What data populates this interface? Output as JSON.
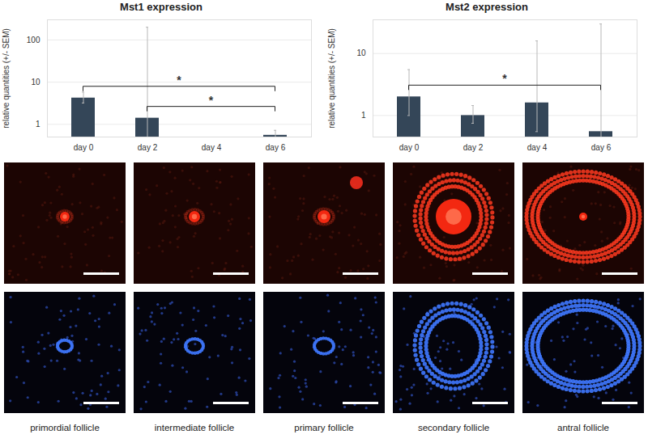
{
  "chart_data": [
    {
      "type": "bar",
      "title": "Mst1 expression",
      "y_label": "relative quantities (+/- SEM)",
      "categories": [
        "day 0",
        "day 2",
        "day 4",
        "day 6"
      ],
      "values": [
        4.2,
        1.4,
        null,
        0.55
      ],
      "error_low": [
        3.2,
        0.5,
        null,
        0.5
      ],
      "error_high": [
        5.8,
        200,
        null,
        0.72
      ],
      "color": "#344658",
      "log": "y",
      "grid": true,
      "ylim": [
        0.5,
        300
      ],
      "yticks": [
        1,
        10,
        100
      ],
      "annotations": [
        {
          "from": "day 0",
          "to": "day 6",
          "label": "*"
        },
        {
          "from": "day 2",
          "to": "day 6",
          "label": "*"
        }
      ]
    },
    {
      "type": "bar",
      "title": "Mst2 expression",
      "y_label": "relative quantities (+/- SEM)",
      "categories": [
        "day 0",
        "day 2",
        "day 4",
        "day 6"
      ],
      "values": [
        2.0,
        1.0,
        1.6,
        0.55
      ],
      "error_low": [
        1.0,
        0.75,
        0.55,
        0.45
      ],
      "error_high": [
        5.5,
        1.45,
        16,
        30
      ],
      "color": "#344658",
      "log": "y",
      "grid": true,
      "ylim": [
        0.45,
        35
      ],
      "yticks": [
        1,
        10
      ],
      "annotations": [
        {
          "from": "day 0",
          "to": "day 6",
          "label": "*"
        }
      ]
    }
  ],
  "images": {
    "rows": 2,
    "labels": [
      "primordial follicle",
      "intermediate follicle",
      "primary follicle",
      "secondary follicle",
      "antral follicle"
    ]
  }
}
